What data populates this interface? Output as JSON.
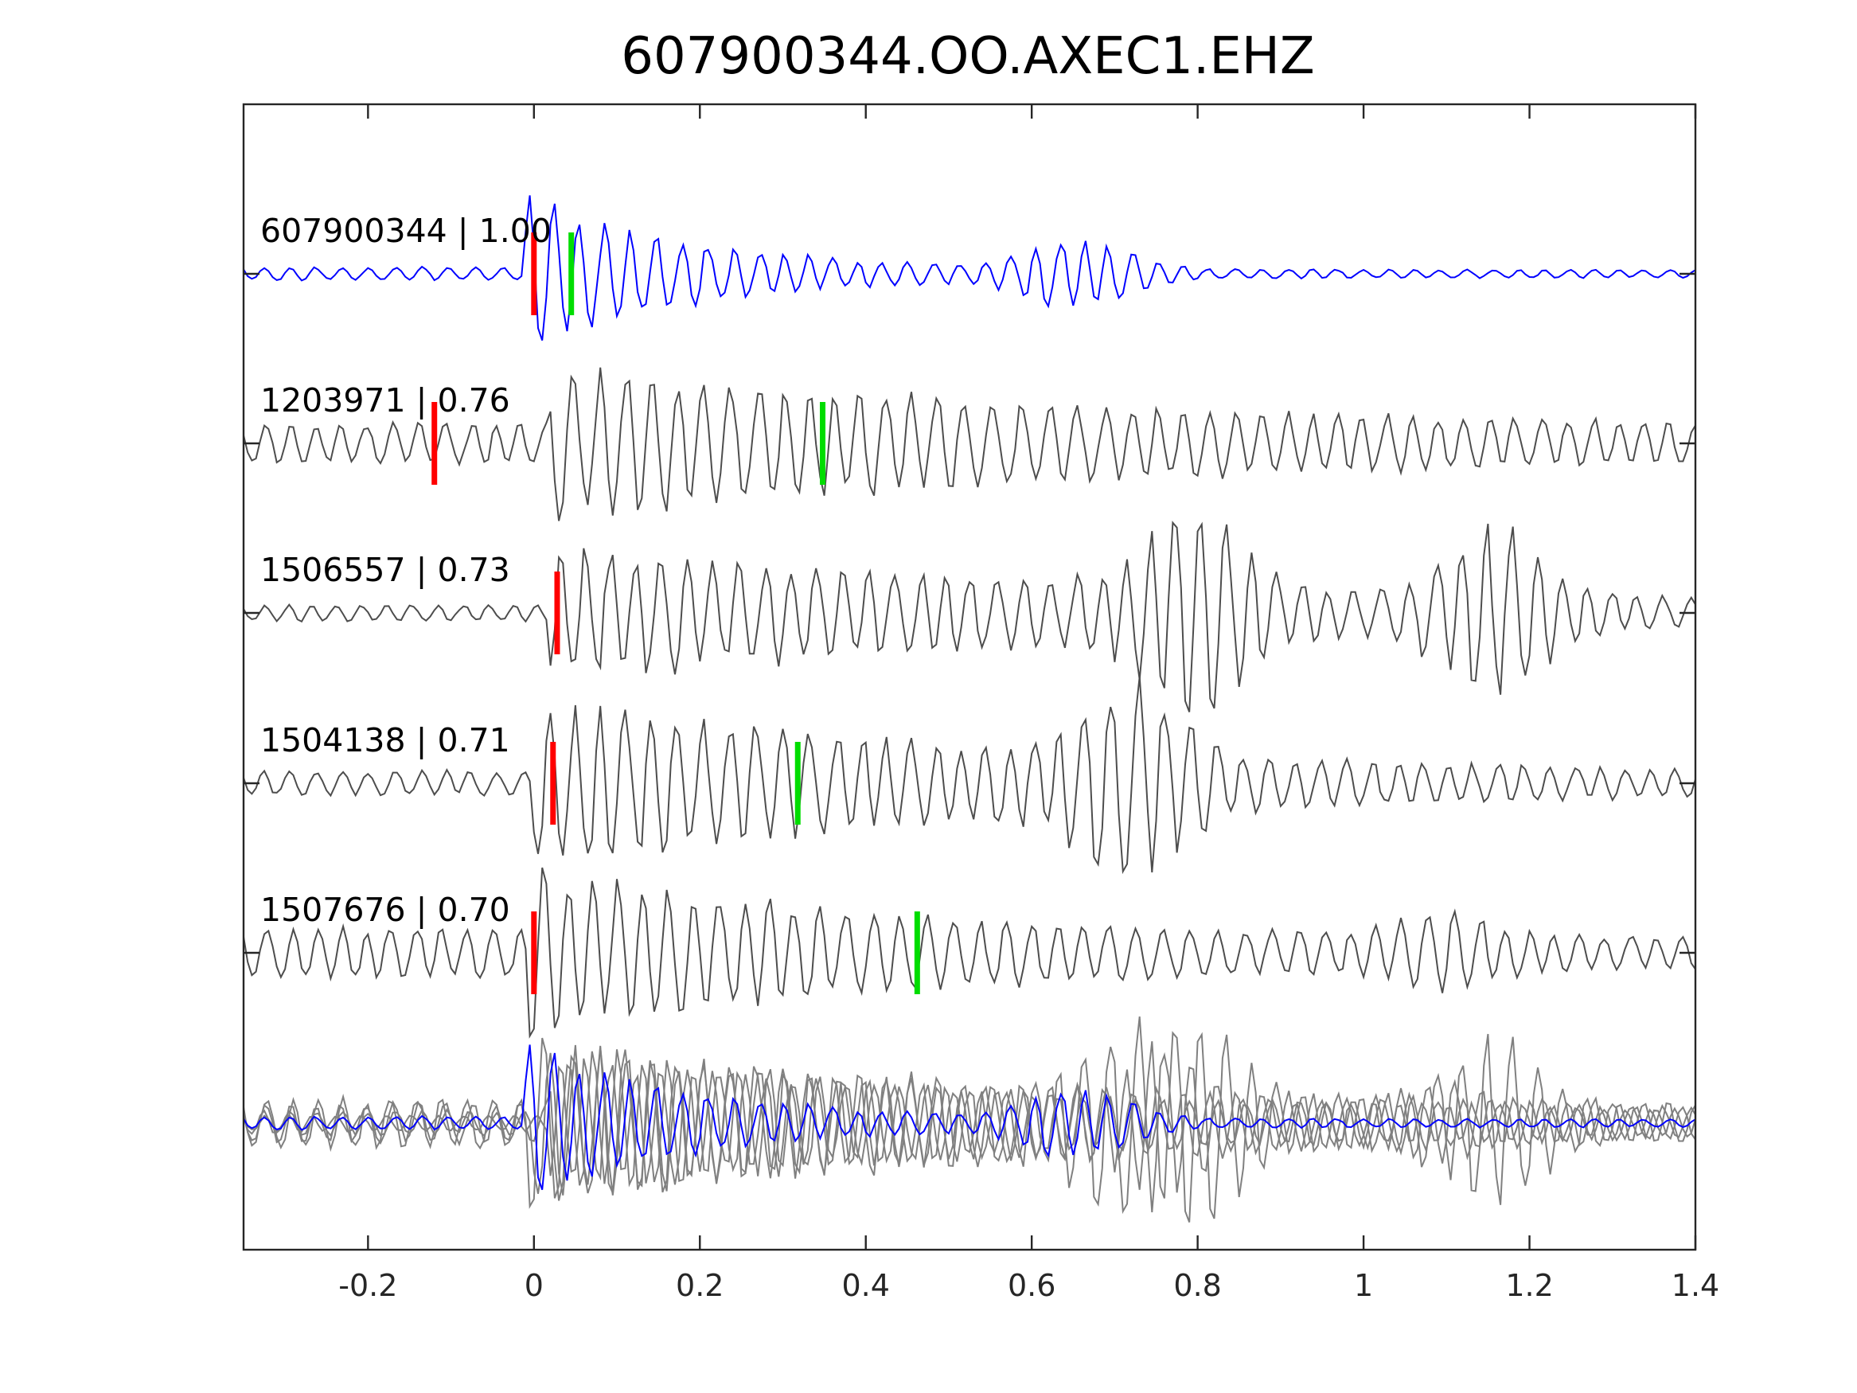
{
  "chart_data": {
    "type": "line",
    "title": "607900344.OO.AXEC1.EHZ",
    "xlabel": "",
    "ylabel": "",
    "xlim": [
      -0.35,
      1.4
    ],
    "x_ticks": [
      {
        "value": -0.2,
        "label": "-0.2"
      },
      {
        "value": 0,
        "label": "0"
      },
      {
        "value": 0.2,
        "label": "0.2"
      },
      {
        "value": 0.4,
        "label": "0.4"
      },
      {
        "value": 0.6,
        "label": "0.6"
      },
      {
        "value": 0.8,
        "label": "0.8"
      },
      {
        "value": 1,
        "label": "1"
      },
      {
        "value": 1.2,
        "label": "1.2"
      },
      {
        "value": 1.4,
        "label": "1.4"
      }
    ],
    "grid": false,
    "colors": {
      "template": "#0000ff",
      "match": "#4d4d4d",
      "stack": "#808080",
      "p_pick": "#ff0000",
      "s_pick": "#00dd00"
    },
    "series": [
      {
        "id": "607900344",
        "label": "607900344 | 1.00",
        "color": "#0000ff",
        "p_pick": 0.0,
        "s_pick": 0.045,
        "waveform": {
          "onset": 0.0,
          "pre_amp": 0.08,
          "main_amp": 0.9,
          "decay": 0.2,
          "period": 0.03,
          "late_bursts": [
            {
              "t": 0.655,
              "amp": 0.35
            }
          ],
          "seed": 3
        }
      },
      {
        "id": "1203971",
        "label": "1203971 | 0.76",
        "color": "#4d4d4d",
        "p_pick": -0.12,
        "s_pick": 0.348,
        "waveform": {
          "onset": 0.03,
          "pre_amp": 0.25,
          "main_amp": 0.8,
          "decay": 0.7,
          "period": 0.03,
          "late_bursts": [],
          "seed": 11
        }
      },
      {
        "id": "1506557",
        "label": "1506557 | 0.73",
        "color": "#4d4d4d",
        "p_pick": 0.028,
        "s_pick": null,
        "waveform": {
          "onset": 0.03,
          "pre_amp": 0.1,
          "main_amp": 0.75,
          "decay": 0.8,
          "period": 0.03,
          "late_bursts": [
            {
              "t": 0.8,
              "amp": 1.0
            },
            {
              "t": 1.16,
              "amp": 0.8
            }
          ],
          "seed": 23
        }
      },
      {
        "id": "1504138",
        "label": "1504138 | 0.71",
        "color": "#4d4d4d",
        "p_pick": 0.023,
        "s_pick": 0.318,
        "waveform": {
          "onset": 0.01,
          "pre_amp": 0.15,
          "main_amp": 0.95,
          "decay": 0.6,
          "period": 0.03,
          "late_bursts": [
            {
              "t": 0.72,
              "amp": 0.85
            }
          ],
          "seed": 37
        }
      },
      {
        "id": "1507676",
        "label": "1507676 | 0.70",
        "color": "#4d4d4d",
        "p_pick": 0.0,
        "s_pick": 0.462,
        "waveform": {
          "onset": 0.0,
          "pre_amp": 0.3,
          "main_amp": 0.9,
          "decay": 0.4,
          "period": 0.03,
          "late_bursts": [
            {
              "t": 1.1,
              "amp": 0.25
            }
          ],
          "seed": 51
        }
      }
    ]
  }
}
